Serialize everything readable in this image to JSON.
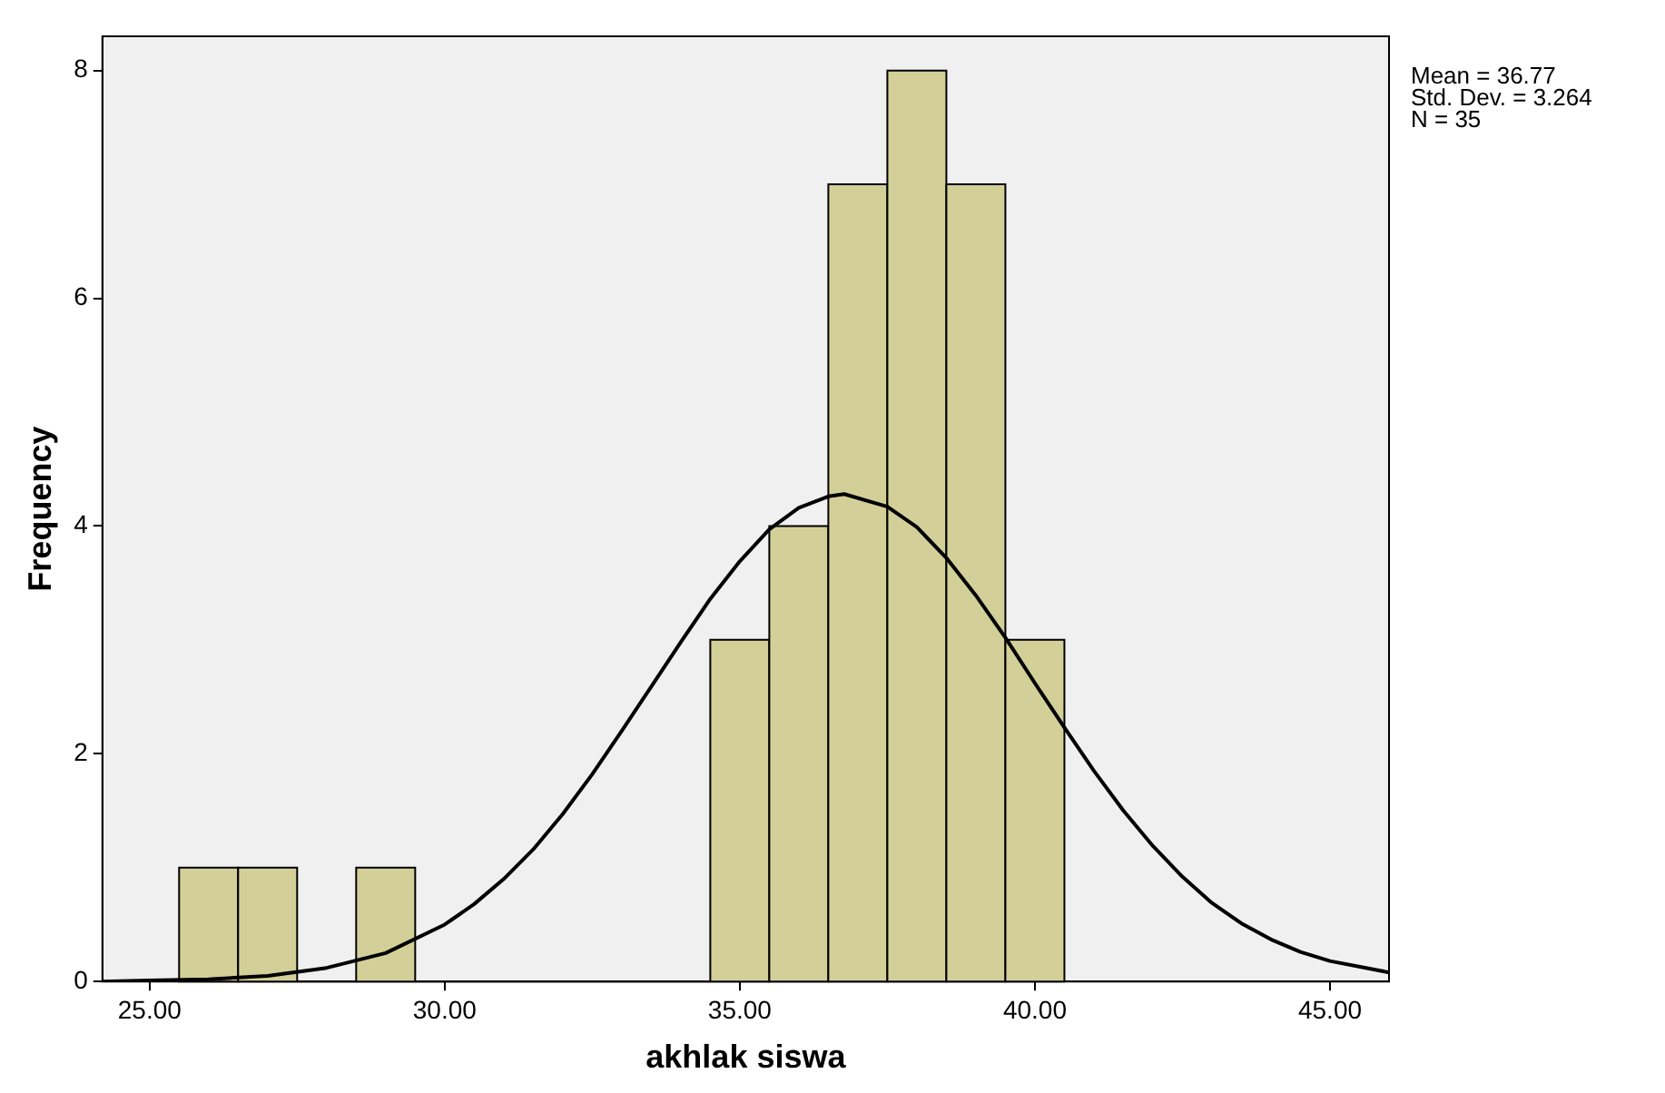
{
  "chart_data": {
    "type": "histogram",
    "xlabel": "akhlak siswa",
    "ylabel": "Frequency",
    "bins": [
      25.5,
      26.5,
      27.5,
      28.5,
      29.5,
      30.5,
      31.5,
      32.5,
      33.5,
      34.5,
      35.5,
      36.5,
      37.5,
      38.5,
      39.5,
      40.5
    ],
    "values": [
      1,
      1,
      0,
      1,
      0,
      0,
      0,
      0,
      0,
      3,
      4,
      7,
      8,
      7,
      3
    ],
    "color": "#d3cf98",
    "series": [
      {
        "type": "line",
        "color": "#000000",
        "x": [
          24.2,
          25,
          26,
          27,
          28,
          29,
          30,
          30.5,
          31,
          31.5,
          32,
          32.5,
          33,
          33.5,
          34,
          34.5,
          35,
          35.5,
          36,
          36.5,
          36.77,
          37.5,
          38,
          38.5,
          39,
          39.5,
          40,
          40.5,
          41,
          41.5,
          42,
          42.5,
          43,
          43.5,
          44,
          44.5,
          45,
          46
        ],
        "values": [
          0.0,
          0.01,
          0.02,
          0.05,
          0.12,
          0.25,
          0.5,
          0.68,
          0.9,
          1.16,
          1.47,
          1.82,
          2.2,
          2.59,
          2.98,
          3.36,
          3.69,
          3.97,
          4.16,
          4.26,
          4.28,
          4.17,
          3.99,
          3.72,
          3.39,
          3.02,
          2.62,
          2.23,
          1.85,
          1.5,
          1.19,
          0.92,
          0.69,
          0.51,
          0.37,
          0.26,
          0.18,
          0.08
        ]
      }
    ],
    "xlim": [
      24.2,
      46.0
    ],
    "ylim": [
      0,
      8.3
    ],
    "xticks": [
      {
        "value": 25,
        "label": "25.00"
      },
      {
        "value": 30,
        "label": "30.00"
      },
      {
        "value": 35,
        "label": "35.00"
      },
      {
        "value": 40,
        "label": "40.00"
      },
      {
        "value": 45,
        "label": "45.00"
      }
    ],
    "yticks": [
      0,
      2,
      4,
      6,
      8
    ],
    "grid": false,
    "legend": false,
    "marker": "none",
    "annotations": [
      "Mean = 36.77",
      "Std. Dev. = 3.264",
      "N = 35"
    ]
  }
}
